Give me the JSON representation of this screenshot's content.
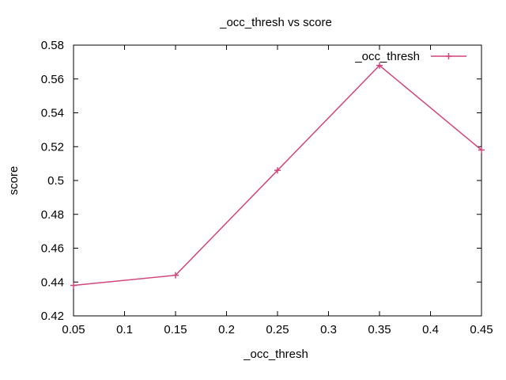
{
  "chart_data": {
    "type": "line",
    "title": "_occ_thresh vs score",
    "xlabel": "_occ_thresh",
    "ylabel": "score",
    "xlim": [
      0.05,
      0.45
    ],
    "ylim": [
      0.42,
      0.58
    ],
    "xticks": [
      "0.05",
      "0.1",
      "0.15",
      "0.2",
      "0.25",
      "0.3",
      "0.35",
      "0.4",
      "0.45"
    ],
    "yticks": [
      "0.42",
      "0.44",
      "0.46",
      "0.48",
      "0.5",
      "0.52",
      "0.54",
      "0.56",
      "0.58"
    ],
    "grid": false,
    "legend_position": "top-right",
    "series": [
      {
        "name": "_occ_thresh",
        "color": "#d1457a",
        "marker": "plus",
        "x": [
          0.05,
          0.15,
          0.25,
          0.35,
          0.45
        ],
        "y": [
          0.438,
          0.444,
          0.506,
          0.568,
          0.518
        ]
      }
    ]
  }
}
